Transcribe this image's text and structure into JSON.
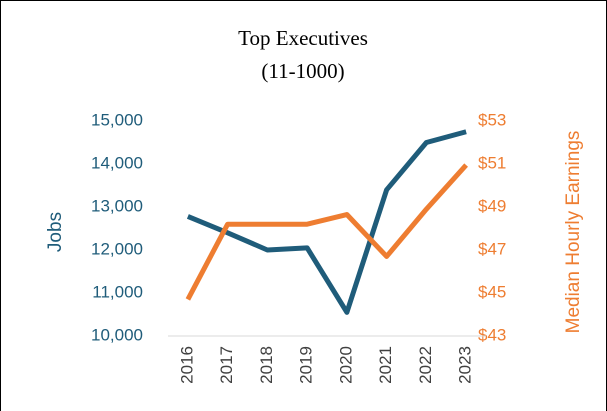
{
  "chart_data": {
    "type": "line",
    "title": "Top Executives",
    "subtitle": "(11-1000)",
    "ylabel": "Jobs",
    "y2label": "Median Hourly Earnings",
    "categories": [
      "2016",
      "2017",
      "2018",
      "2019",
      "2020",
      "2021",
      "2022",
      "2023"
    ],
    "series": [
      {
        "color": "#1f5c7a",
        "values": [
          12780,
          12400,
          12000,
          12050,
          10550,
          13400,
          14500,
          14750
        ]
      },
      {
        "color": "#ee7d31",
        "axis": "y2",
        "values": [
          44.7,
          48.2,
          48.2,
          48.2,
          48.65,
          46.7,
          48.9,
          50.95
        ]
      }
    ],
    "ylim": [
      10000,
      15000
    ],
    "yticks": [
      {
        "value": 10000,
        "label": "10,000"
      },
      {
        "value": 11000,
        "label": "11,000"
      },
      {
        "value": 12000,
        "label": "12,000"
      },
      {
        "value": 13000,
        "label": "13,000"
      },
      {
        "value": 14000,
        "label": "14,000"
      },
      {
        "value": 15000,
        "label": "15,000"
      }
    ],
    "y2lim": [
      43,
      53
    ],
    "y2ticks": [
      {
        "value": 43,
        "label": "$43"
      },
      {
        "value": 45,
        "label": "$45"
      },
      {
        "value": 47,
        "label": "$47"
      },
      {
        "value": 49,
        "label": "$49"
      },
      {
        "value": 51,
        "label": "$51"
      },
      {
        "value": 53,
        "label": "$53"
      }
    ],
    "grid": false
  }
}
